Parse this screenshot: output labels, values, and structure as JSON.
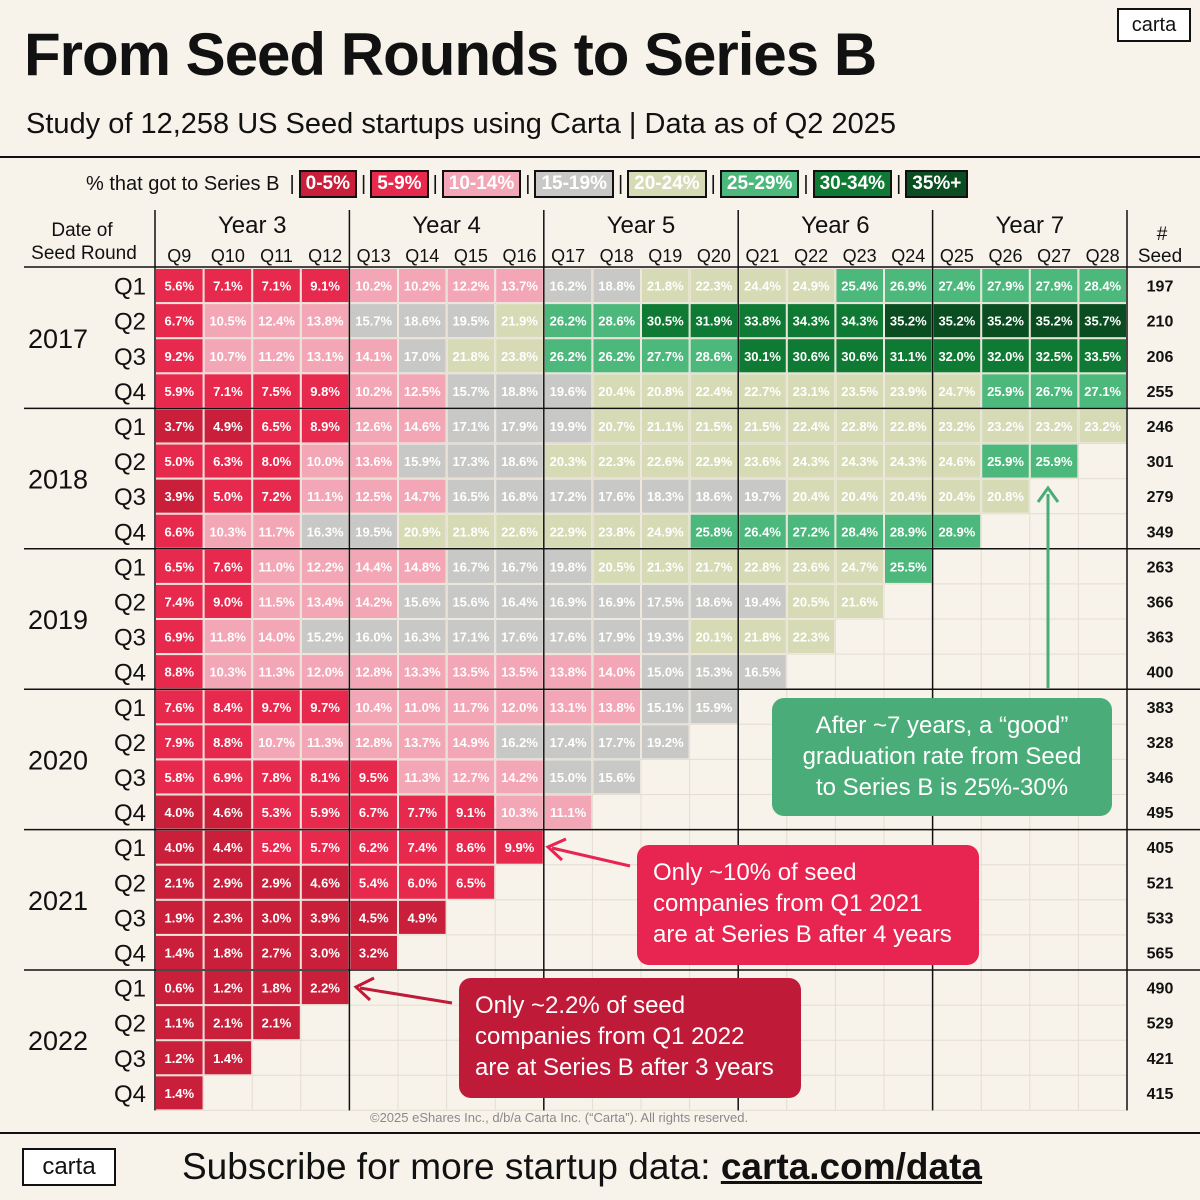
{
  "title": "From Seed Rounds to Series B",
  "subtitle": "Study of 12,258 US Seed startups using Carta | Data as of Q2 2025",
  "logo_text": "carta",
  "legend": {
    "label": "% that got to Series B",
    "buckets": [
      {
        "label": "0-5%",
        "color": "#c91f3b",
        "text_color": "#ffffff"
      },
      {
        "label": "5-9%",
        "color": "#e8294e",
        "text_color": "#ffffff"
      },
      {
        "label": "10-14%",
        "color": "#f3a6b5",
        "text_color": "#ffffff"
      },
      {
        "label": "15-19%",
        "color": "#c8c8c6",
        "text_color": "#ffffff"
      },
      {
        "label": "20-24%",
        "color": "#d6dbb5",
        "text_color": "#ffffff"
      },
      {
        "label": "25-29%",
        "color": "#4db87c",
        "text_color": "#ffffff"
      },
      {
        "label": "30-34%",
        "color": "#0f7a33",
        "text_color": "#ffffff"
      },
      {
        "label": "35%+",
        "color": "#0a4d20",
        "text_color": "#ffffff"
      }
    ]
  },
  "chart_data": {
    "type": "heatmap",
    "row_header": [
      "Date of",
      "Seed Round"
    ],
    "seed_header": [
      "#",
      "Seed"
    ],
    "year_groups": [
      "Year 3",
      "Year 4",
      "Year 5",
      "Year 6",
      "Year 7"
    ],
    "columns": [
      "Q9",
      "Q10",
      "Q11",
      "Q12",
      "Q13",
      "Q14",
      "Q15",
      "Q16",
      "Q17",
      "Q18",
      "Q19",
      "Q20",
      "Q21",
      "Q22",
      "Q23",
      "Q24",
      "Q25",
      "Q26",
      "Q27",
      "Q28"
    ],
    "rows": [
      {
        "year": "2017",
        "quarter": "Q1",
        "seed": "197",
        "values": [
          5.6,
          7.1,
          7.1,
          9.1,
          10.2,
          10.2,
          12.2,
          13.7,
          16.2,
          18.8,
          21.8,
          22.3,
          24.4,
          24.9,
          25.4,
          26.9,
          27.4,
          27.9,
          27.9,
          28.4
        ]
      },
      {
        "year": "2017",
        "quarter": "Q2",
        "seed": "210",
        "values": [
          6.7,
          10.5,
          12.4,
          13.8,
          15.7,
          18.6,
          19.5,
          21.9,
          26.2,
          28.6,
          30.5,
          31.9,
          33.8,
          34.3,
          34.3,
          35.2,
          35.2,
          35.2,
          35.2,
          35.7
        ]
      },
      {
        "year": "2017",
        "quarter": "Q3",
        "seed": "206",
        "values": [
          9.2,
          10.7,
          11.2,
          13.1,
          14.1,
          17.0,
          21.8,
          23.8,
          26.2,
          26.2,
          27.7,
          28.6,
          30.1,
          30.6,
          30.6,
          31.1,
          32.0,
          32.0,
          32.5,
          33.5
        ]
      },
      {
        "year": "2017",
        "quarter": "Q4",
        "seed": "255",
        "values": [
          5.9,
          7.1,
          7.5,
          9.8,
          10.2,
          12.5,
          15.7,
          18.8,
          19.6,
          20.4,
          20.8,
          22.4,
          22.7,
          23.1,
          23.5,
          23.9,
          24.7,
          25.9,
          26.7,
          27.1
        ]
      },
      {
        "year": "2018",
        "quarter": "Q1",
        "seed": "246",
        "values": [
          3.7,
          4.9,
          6.5,
          8.9,
          12.6,
          14.6,
          17.1,
          17.9,
          19.9,
          20.7,
          21.1,
          21.5,
          21.5,
          22.4,
          22.8,
          22.8,
          23.2,
          23.2,
          23.2,
          23.2
        ]
      },
      {
        "year": "2018",
        "quarter": "Q2",
        "seed": "301",
        "values": [
          5.0,
          6.3,
          8.0,
          10.0,
          13.6,
          15.9,
          17.3,
          18.6,
          20.3,
          22.3,
          22.6,
          22.9,
          23.6,
          24.3,
          24.3,
          24.3,
          24.6,
          25.9,
          25.9
        ]
      },
      {
        "year": "2018",
        "quarter": "Q3",
        "seed": "279",
        "values": [
          3.9,
          5.0,
          7.2,
          11.1,
          12.5,
          14.7,
          16.5,
          16.8,
          17.2,
          17.6,
          18.3,
          18.6,
          19.7,
          20.4,
          20.4,
          20.4,
          20.4,
          20.8
        ]
      },
      {
        "year": "2018",
        "quarter": "Q4",
        "seed": "349",
        "values": [
          6.6,
          10.3,
          11.7,
          16.3,
          19.5,
          20.9,
          21.8,
          22.6,
          22.9,
          23.8,
          24.9,
          25.8,
          26.4,
          27.2,
          28.4,
          28.9,
          28.9
        ]
      },
      {
        "year": "2019",
        "quarter": "Q1",
        "seed": "263",
        "values": [
          6.5,
          7.6,
          11.0,
          12.2,
          14.4,
          14.8,
          16.7,
          16.7,
          19.8,
          20.5,
          21.3,
          21.7,
          22.8,
          23.6,
          24.7,
          25.5
        ]
      },
      {
        "year": "2019",
        "quarter": "Q2",
        "seed": "366",
        "values": [
          7.4,
          9.0,
          11.5,
          13.4,
          14.2,
          15.6,
          15.6,
          16.4,
          16.9,
          16.9,
          17.5,
          18.6,
          19.4,
          20.5,
          21.6
        ]
      },
      {
        "year": "2019",
        "quarter": "Q3",
        "seed": "363",
        "values": [
          6.9,
          11.8,
          14.0,
          15.2,
          16.0,
          16.3,
          17.1,
          17.6,
          17.6,
          17.9,
          19.3,
          20.1,
          21.8,
          22.3
        ]
      },
      {
        "year": "2019",
        "quarter": "Q4",
        "seed": "400",
        "values": [
          8.8,
          10.3,
          11.3,
          12.0,
          12.8,
          13.3,
          13.5,
          13.5,
          13.8,
          14.0,
          15.0,
          15.3,
          16.5
        ]
      },
      {
        "year": "2020",
        "quarter": "Q1",
        "seed": "383",
        "values": [
          7.6,
          8.4,
          9.7,
          9.7,
          10.4,
          11.0,
          11.7,
          12.0,
          13.1,
          13.8,
          15.1,
          15.9
        ]
      },
      {
        "year": "2020",
        "quarter": "Q2",
        "seed": "328",
        "values": [
          7.9,
          8.8,
          10.7,
          11.3,
          12.8,
          13.7,
          14.9,
          16.2,
          17.4,
          17.7,
          19.2
        ]
      },
      {
        "year": "2020",
        "quarter": "Q3",
        "seed": "346",
        "values": [
          5.8,
          6.9,
          7.8,
          8.1,
          9.5,
          11.3,
          12.7,
          14.2,
          15.0,
          15.6
        ]
      },
      {
        "year": "2020",
        "quarter": "Q4",
        "seed": "495",
        "values": [
          4.0,
          4.6,
          5.3,
          5.9,
          6.7,
          7.7,
          9.1,
          10.3,
          11.1
        ]
      },
      {
        "year": "2021",
        "quarter": "Q1",
        "seed": "405",
        "values": [
          4.0,
          4.4,
          5.2,
          5.7,
          6.2,
          7.4,
          8.6,
          9.9
        ]
      },
      {
        "year": "2021",
        "quarter": "Q2",
        "seed": "521",
        "values": [
          2.1,
          2.9,
          2.9,
          4.6,
          5.4,
          6.0,
          6.5
        ]
      },
      {
        "year": "2021",
        "quarter": "Q3",
        "seed": "533",
        "values": [
          1.9,
          2.3,
          3.0,
          3.9,
          4.5,
          4.9
        ]
      },
      {
        "year": "2021",
        "quarter": "Q4",
        "seed": "565",
        "values": [
          1.4,
          1.8,
          2.7,
          3.0,
          3.2
        ]
      },
      {
        "year": "2022",
        "quarter": "Q1",
        "seed": "490",
        "values": [
          0.6,
          1.2,
          1.8,
          2.2
        ]
      },
      {
        "year": "2022",
        "quarter": "Q2",
        "seed": "529",
        "values": [
          1.1,
          2.1,
          2.1
        ]
      },
      {
        "year": "2022",
        "quarter": "Q3",
        "seed": "421",
        "values": [
          1.2,
          1.4
        ]
      },
      {
        "year": "2022",
        "quarter": "Q4",
        "seed": "415",
        "values": [
          1.4
        ]
      }
    ]
  },
  "callouts": {
    "green": [
      "After ~7 years, a “good”",
      "graduation rate from Seed",
      "to Series B is 25%-30%"
    ],
    "pink": [
      "Only ~10% of seed",
      "companies from Q1 2021",
      "are at Series B after 4 years"
    ],
    "red": [
      "Only ~2.2% of seed",
      "companies from Q1 2022",
      "are at Series B after 3 years"
    ]
  },
  "copyright": "©2025 eShares Inc., d/b/a Carta Inc. (“Carta”). All rights reserved.",
  "footer": {
    "text": "Subscribe for more startup data: ",
    "url": "carta.com/data"
  }
}
